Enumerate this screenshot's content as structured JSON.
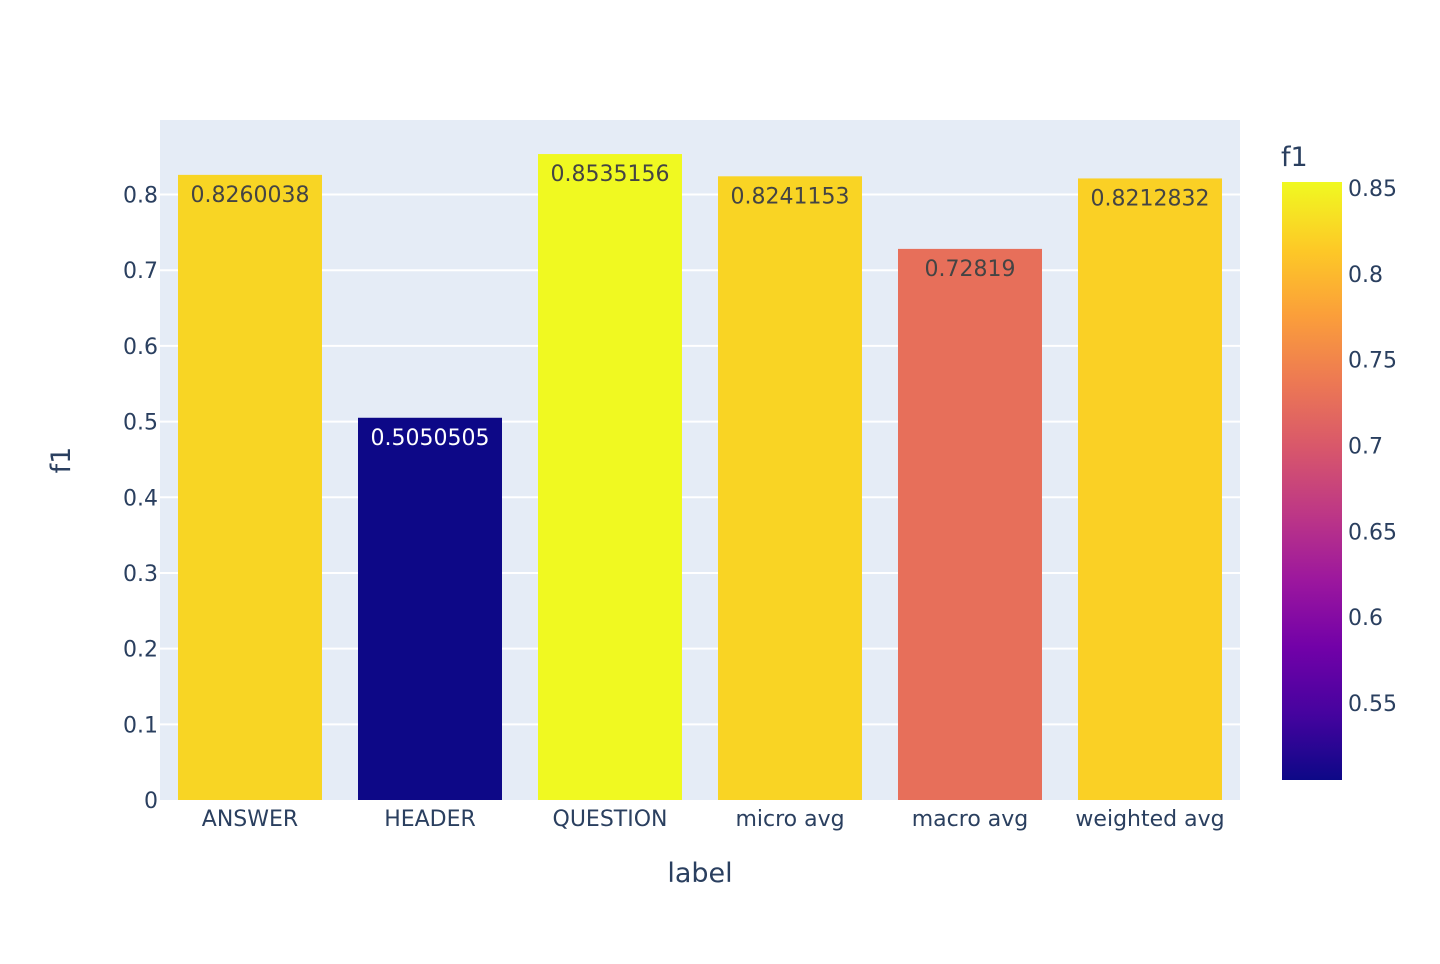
{
  "chart_data": {
    "type": "bar",
    "xlabel": "label",
    "ylabel": "f1",
    "categories": [
      "ANSWER",
      "HEADER",
      "QUESTION",
      "micro avg",
      "macro avg",
      "weighted avg"
    ],
    "values": [
      0.8260038,
      0.5050505,
      0.8535156,
      0.8241153,
      0.72819,
      0.8212832
    ],
    "value_labels": [
      "0.8260038",
      "0.5050505",
      "0.8535156",
      "0.8241153",
      "0.72819",
      "0.8212832"
    ],
    "bar_colors": [
      "#f8d524",
      "#0d0887",
      "#f0f921",
      "#f9d424",
      "#e76f5a",
      "#fad025"
    ],
    "label_colors": [
      "#444444",
      "#ffffff",
      "#444444",
      "#444444",
      "#444444",
      "#444444"
    ],
    "ylim": [
      0,
      0.8985
    ],
    "yticks": [
      0,
      0.1,
      0.2,
      0.3,
      0.4,
      0.5,
      0.6,
      0.7,
      0.8
    ],
    "ytick_labels": [
      "0",
      "0.1",
      "0.2",
      "0.3",
      "0.4",
      "0.5",
      "0.6",
      "0.7",
      "0.8"
    ],
    "grid": true,
    "plot_background": "#e5ecf6",
    "colorbar": {
      "title": "f1",
      "range": [
        0.5050505,
        0.8535156
      ],
      "ticks": [
        0.55,
        0.6,
        0.65,
        0.7,
        0.75,
        0.8,
        0.85
      ],
      "tick_labels": [
        "0.55",
        "0.6",
        "0.65",
        "0.7",
        "0.75",
        "0.8",
        "0.85"
      ],
      "colorscale": [
        "#0d0887",
        "#46039f",
        "#7201a8",
        "#9c179e",
        "#bd3786",
        "#d8576b",
        "#ed7953",
        "#fb9f3a",
        "#fdca26",
        "#f0f921"
      ]
    }
  }
}
